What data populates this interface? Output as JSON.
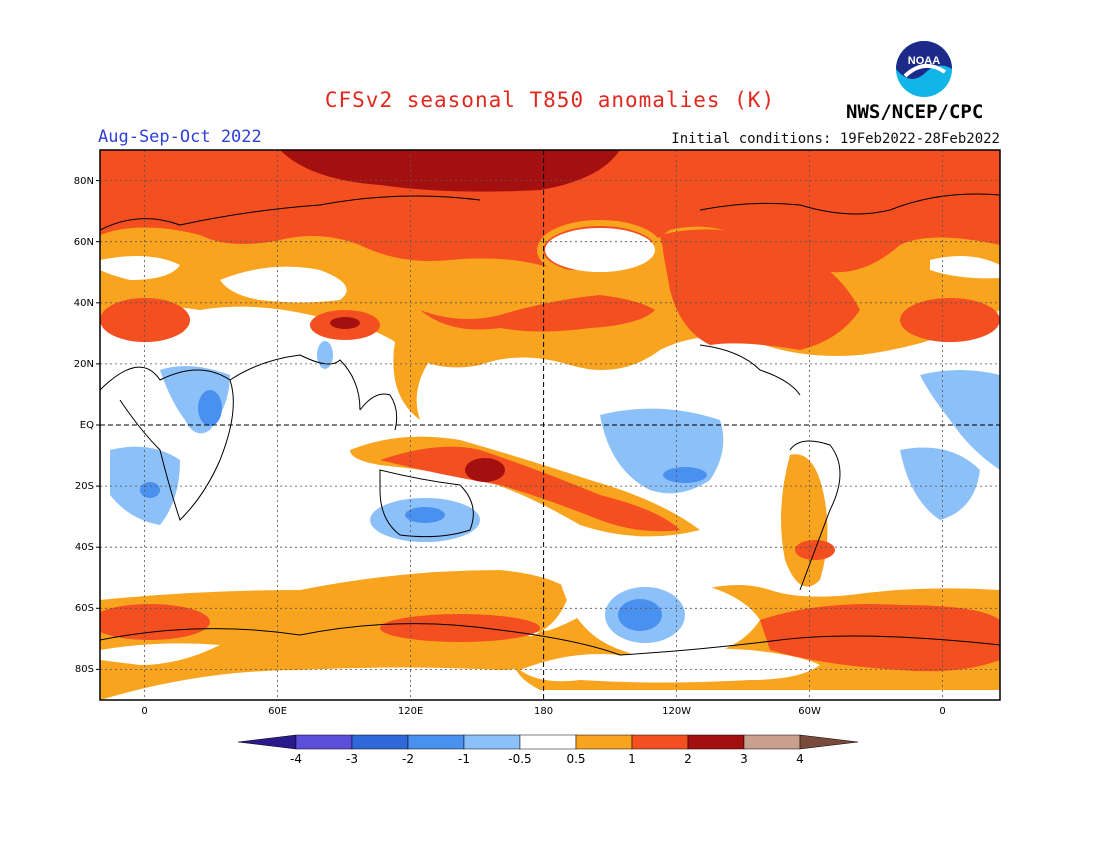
{
  "header": {
    "title": "CFSv2 seasonal T850 anomalies (K)",
    "period": "Aug-Sep-Oct 2022",
    "initial_conditions": "Initial conditions: 19Feb2022-28Feb2022",
    "agency": "NWS/NCEP/CPC",
    "logo_text": "NOAA"
  },
  "map": {
    "lat_labels": [
      "80N",
      "60N",
      "40N",
      "20N",
      "EQ",
      "20S",
      "40S",
      "60S",
      "80S"
    ],
    "lon_labels": [
      "0",
      "60E",
      "120E",
      "180",
      "120W",
      "60W",
      "0"
    ],
    "variable": "850 hPa temperature anomaly",
    "units": "K"
  },
  "legend": {
    "ticks": [
      "-4",
      "-3",
      "-2",
      "-1",
      "-0.5",
      "0.5",
      "1",
      "2",
      "3",
      "4"
    ],
    "colors": [
      "#2b1a8c",
      "#5a4fd8",
      "#2f68d8",
      "#4a90ee",
      "#8cc0f8",
      "#ffffff",
      "#f9a41e",
      "#f44f20",
      "#a41010",
      "#c9a08e",
      "#7a4b3a"
    ]
  }
}
